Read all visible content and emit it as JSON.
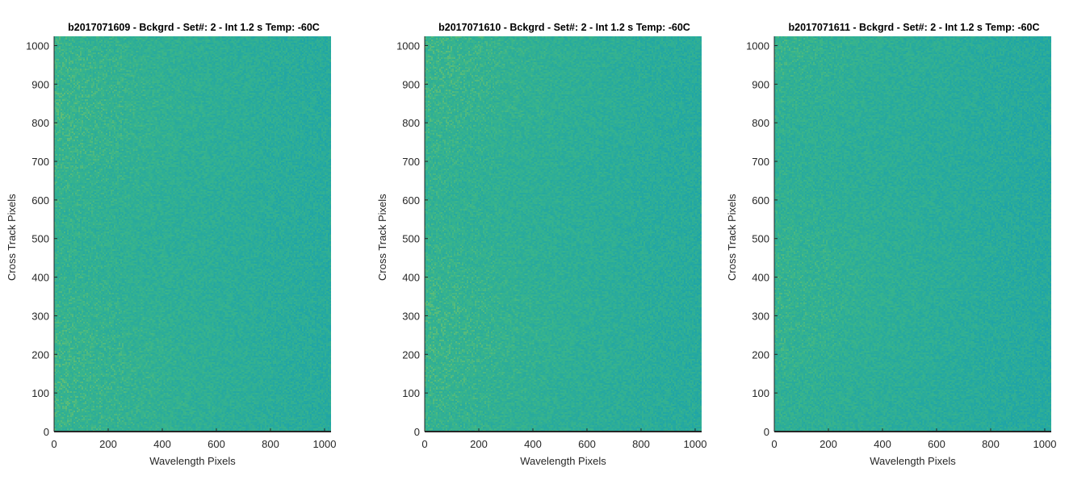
{
  "colors": {
    "background": "#ffffff",
    "axis": "#262626",
    "colormap_low": "#1ea4a8",
    "colormap_mid": "#3ab58a",
    "colormap_high": "#c9d43e"
  },
  "chart_data": [
    {
      "type": "heatmap",
      "title": "b2017071609 - Bckgrd - Set#: 2 - Int 1.2 s Temp: -60C",
      "xlabel": "Wavelength Pixels",
      "ylabel": "Cross Track Pixels",
      "xlim": [
        0,
        1024
      ],
      "ylim": [
        0,
        1024
      ],
      "xticks": [
        0,
        200,
        400,
        600,
        800,
        1000
      ],
      "yticks": [
        0,
        100,
        200,
        300,
        400,
        500,
        600,
        700,
        800,
        900,
        1000
      ],
      "colormap": "parula",
      "appearance": "noisy background frame, slightly brighter (yellow-green) toward low wavelength pixels"
    },
    {
      "type": "heatmap",
      "title": "b2017071610 - Bckgrd - Set#: 2 - Int 1.2 s Temp: -60C",
      "xlabel": "Wavelength Pixels",
      "ylabel": "Cross Track Pixels",
      "xlim": [
        0,
        1024
      ],
      "ylim": [
        0,
        1024
      ],
      "xticks": [
        0,
        200,
        400,
        600,
        800,
        1000
      ],
      "yticks": [
        0,
        100,
        200,
        300,
        400,
        500,
        600,
        700,
        800,
        900,
        1000
      ],
      "colormap": "parula",
      "appearance": "noisy background frame, slightly brighter (yellow-green) toward low wavelength pixels"
    },
    {
      "type": "heatmap",
      "title": "b2017071611 - Bckgrd - Set#: 2 - Int 1.2 s Temp: -60C",
      "xlabel": "Wavelength Pixels",
      "ylabel": "Cross Track Pixels",
      "xlim": [
        0,
        1024
      ],
      "ylim": [
        0,
        1024
      ],
      "xticks": [
        0,
        200,
        400,
        600,
        800,
        1000
      ],
      "yticks": [
        0,
        100,
        200,
        300,
        400,
        500,
        600,
        700,
        800,
        900,
        1000
      ],
      "colormap": "parula",
      "appearance": "noisy background frame, slightly brighter (yellow-green) toward low wavelength pixels"
    }
  ]
}
